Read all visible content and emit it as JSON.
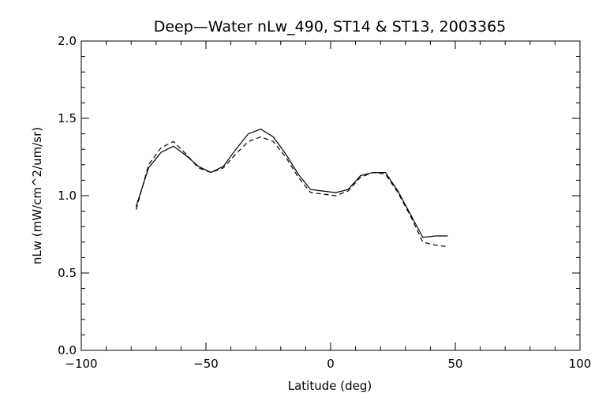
{
  "chart_data": {
    "type": "line",
    "title": "Deep—Water nLw_490, ST14 & ST13, 2003365",
    "xlabel": "Latitude (deg)",
    "ylabel": "nLw (mW/cm^2/um/sr)",
    "xlim": [
      -100,
      100
    ],
    "ylim": [
      0.0,
      2.0
    ],
    "x_ticks": [
      -100,
      -50,
      0,
      50,
      100
    ],
    "x_tick_labels": [
      "−100",
      "−50",
      "0",
      "50",
      "100"
    ],
    "y_ticks": [
      0.0,
      0.5,
      1.0,
      1.5,
      2.0
    ],
    "y_tick_labels": [
      "0.0",
      "0.5",
      "1.0",
      "1.5",
      "2.0"
    ],
    "grid": false,
    "line_color": "#000000",
    "series": [
      {
        "style": "solid",
        "x": [
          -78,
          -73,
          -68,
          -63,
          -58,
          -53,
          -48,
          -43,
          -38,
          -33,
          -28,
          -23,
          -18,
          -13,
          -8,
          -3,
          2,
          7,
          12,
          17,
          22,
          27,
          32,
          37,
          42,
          47
        ],
        "y": [
          0.93,
          1.18,
          1.28,
          1.32,
          1.26,
          1.19,
          1.15,
          1.19,
          1.3,
          1.4,
          1.43,
          1.38,
          1.27,
          1.14,
          1.04,
          1.03,
          1.02,
          1.04,
          1.13,
          1.15,
          1.15,
          1.03,
          0.88,
          0.73,
          0.74,
          0.74
        ]
      },
      {
        "style": "dashed",
        "x": [
          -78,
          -73,
          -68,
          -63,
          -58,
          -53,
          -48,
          -43,
          -38,
          -33,
          -28,
          -23,
          -18,
          -13,
          -8,
          -3,
          2,
          7,
          12,
          17,
          22,
          27,
          32,
          37,
          42,
          47
        ],
        "y": [
          0.91,
          1.2,
          1.31,
          1.35,
          1.27,
          1.18,
          1.15,
          1.18,
          1.27,
          1.35,
          1.38,
          1.35,
          1.25,
          1.12,
          1.02,
          1.01,
          1.0,
          1.03,
          1.12,
          1.15,
          1.14,
          1.02,
          0.87,
          0.7,
          0.68,
          0.67
        ]
      }
    ]
  }
}
